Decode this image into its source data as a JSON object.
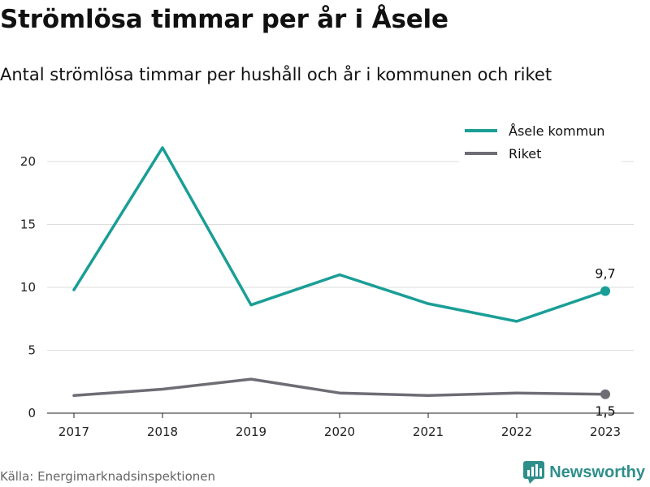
{
  "header": {
    "title": "Strömlösa timmar per år i Åsele",
    "subtitle": "Antal strömlösa timmar per hushåll och år i kommunen och riket"
  },
  "footer": {
    "source": "Källa: Energimarknadsinspektionen",
    "brand": "Newsworthy",
    "brand_icon": "newsworthy-logo-icon"
  },
  "colors": {
    "asele": "#1a9e96",
    "riket": "#6e6d75",
    "grid": "#dcdcdc",
    "brand": "#2e8f8a"
  },
  "chart_data": {
    "type": "line",
    "x": [
      "2017",
      "2018",
      "2019",
      "2020",
      "2021",
      "2022",
      "2023"
    ],
    "ylim": [
      0,
      22
    ],
    "yticks": [
      0,
      5,
      10,
      15,
      20
    ],
    "grid": true,
    "legend_position": "top-right",
    "series": [
      {
        "name": "Åsele kommun",
        "values": [
          9.8,
          21.1,
          8.6,
          11.0,
          8.7,
          7.3,
          9.7
        ],
        "end_label": "9,7"
      },
      {
        "name": "Riket",
        "values": [
          1.4,
          1.9,
          2.7,
          1.6,
          1.4,
          1.6,
          1.5
        ],
        "end_label": "1,5"
      }
    ]
  }
}
